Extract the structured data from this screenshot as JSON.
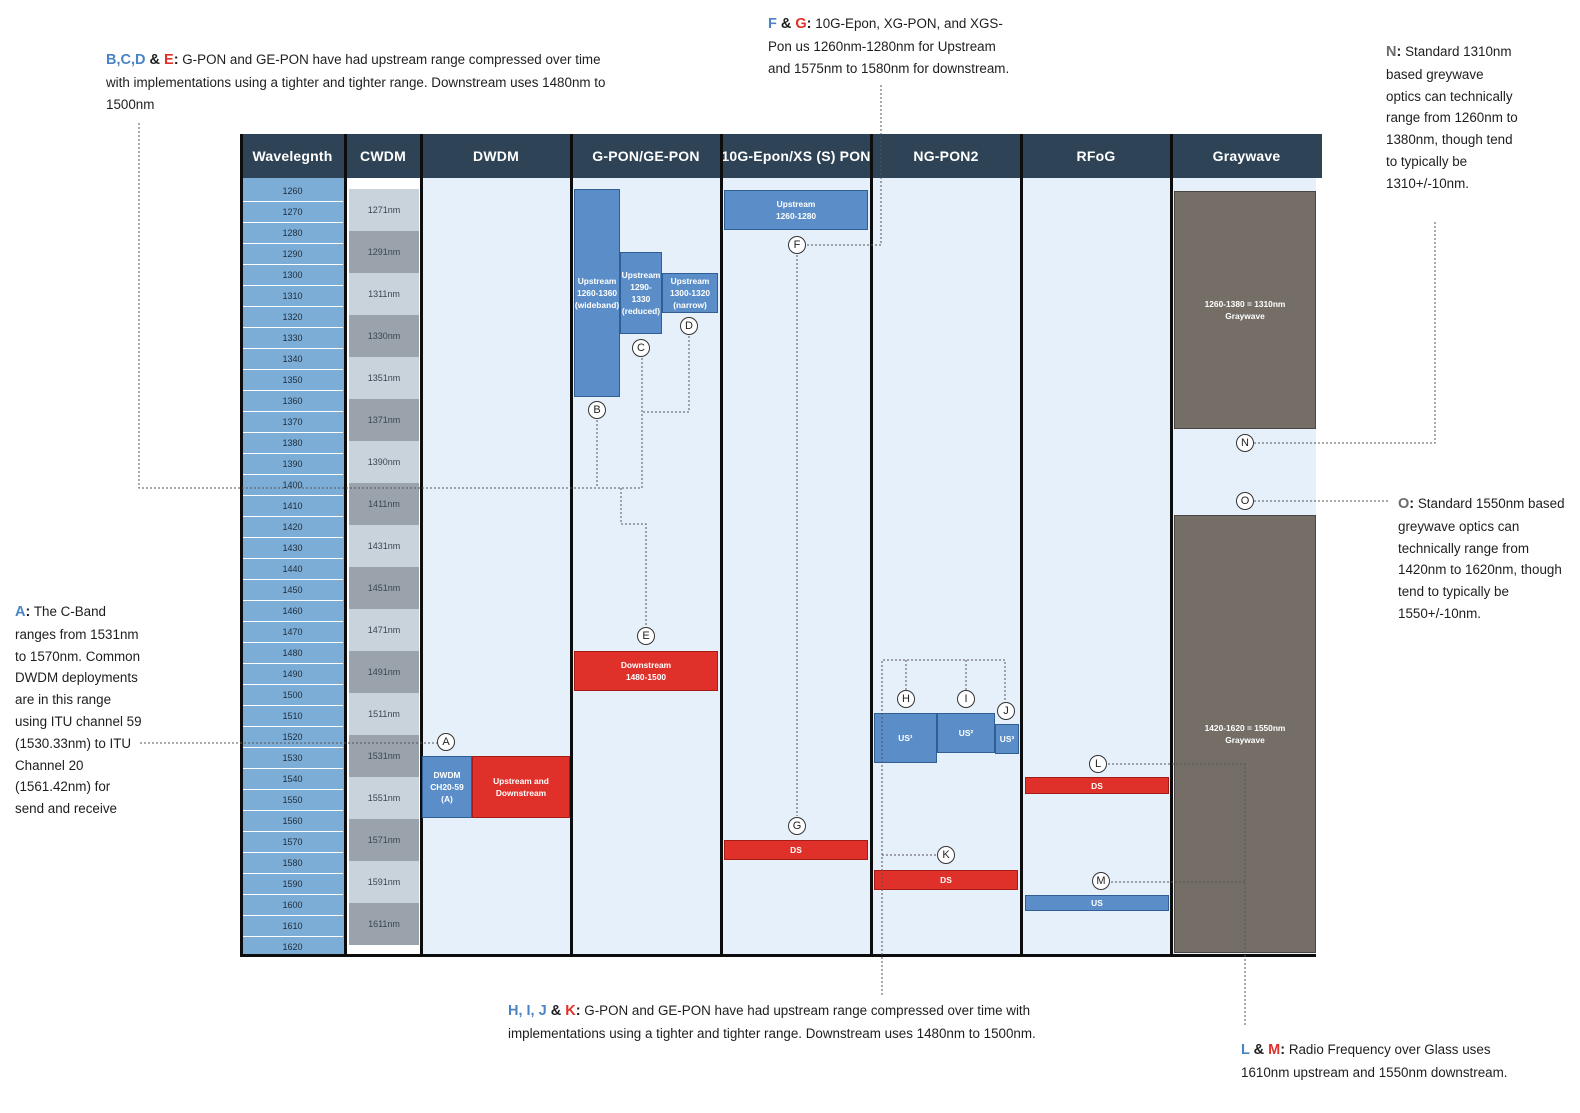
{
  "notes": {
    "bcde": {
      "prefix": [
        {
          "text": "B,C,D",
          "cls": "blue"
        },
        {
          "text": " & ",
          "cls": "amp"
        },
        {
          "text": "E",
          "cls": "red"
        },
        {
          "text": ":",
          "cls": "amp"
        }
      ],
      "text": "G-PON and GE-PON have had upstream range compressed over time with implementations using a tighter and tighter range. Downstream uses 1480nm to 1500nm"
    },
    "fg": {
      "prefix": [
        {
          "text": "F",
          "cls": "blue"
        },
        {
          "text": " & ",
          "cls": "amp"
        },
        {
          "text": "G",
          "cls": "red"
        },
        {
          "text": ":",
          "cls": "amp"
        }
      ],
      "text": "10G-Epon, XG-PON, and XGS-Pon us 1260nm-1280nm for Upstream and 1575nm to 1580nm for downstream."
    },
    "n": {
      "prefix": [
        {
          "text": "N",
          "cls": "grey"
        },
        {
          "text": ":",
          "cls": "amp"
        }
      ],
      "text": "Standard 1310nm based greywave optics can technically range from 1260nm to 1380nm, though tend to typically be 1310+/-10nm."
    },
    "o": {
      "prefix": [
        {
          "text": "O",
          "cls": "grey"
        },
        {
          "text": ":",
          "cls": "amp"
        }
      ],
      "text": "Standard 1550nm based greywave optics can technically range from 1420nm to 1620nm, though tend to typically be 1550+/-10nm."
    },
    "a": {
      "prefix": [
        {
          "text": "A",
          "cls": "blue"
        },
        {
          "text": ":",
          "cls": "amp"
        }
      ],
      "text": "The C-Band ranges from 1531nm to 1570nm. Common DWDM deployments are in this range using ITU channel 59 (1530.33nm) to ITU Channel 20 (1561.42nm) for send and receive"
    },
    "hijk": {
      "prefix": [
        {
          "text": "H, I, J",
          "cls": "blue"
        },
        {
          "text": " & ",
          "cls": "amp"
        },
        {
          "text": "K",
          "cls": "red"
        },
        {
          "text": ":",
          "cls": "amp"
        }
      ],
      "text": "G-PON and GE-PON have had upstream range compressed over time with implementations using a tighter and tighter range. Downstream uses 1480nm to 1500nm."
    },
    "lm": {
      "prefix": [
        {
          "text": "L",
          "cls": "blue"
        },
        {
          "text": " & ",
          "cls": "amp"
        },
        {
          "text": "M",
          "cls": "red"
        },
        {
          "text": ":",
          "cls": "amp"
        }
      ],
      "text": "Radio Frequency over Glass uses 1610nm upstream and 1550nm downstream."
    }
  },
  "columns": [
    "Wavelegnth",
    "CWDM",
    "DWDM",
    "G-PON/GE-PON",
    "10G-Epon/XS (S) PON",
    "NG-PON2",
    "RFoG",
    "Graywave"
  ],
  "wavelengths": [
    1260,
    1270,
    1280,
    1290,
    1300,
    1310,
    1320,
    1330,
    1340,
    1350,
    1360,
    1370,
    1380,
    1390,
    1400,
    1410,
    1420,
    1430,
    1440,
    1450,
    1460,
    1470,
    1480,
    1490,
    1500,
    1510,
    1520,
    1530,
    1540,
    1550,
    1560,
    1570,
    1580,
    1590,
    1600,
    1610,
    1620
  ],
  "cwdm": [
    "1271nm",
    "1291nm",
    "1311nm",
    "1330nm",
    "1351nm",
    "1371nm",
    "1390nm",
    "1411nm",
    "1431nm",
    "1451nm",
    "1471nm",
    "1491nm",
    "1511nm",
    "1531nm",
    "1551nm",
    "1571nm",
    "1591nm",
    "1611nm"
  ],
  "bars": {
    "dwdm_ch": "DWDM\nCH20-59\n(A)",
    "dwdm_usds": "Upstream and\nDownstream",
    "gpon_wide": "Upstream\n1260-1360\n(wideband)",
    "gpon_reduced": "Upstream\n1290-1330\n(reduced)",
    "gpon_narrow": "Upstream\n1300-1320\n(narrow)",
    "gpon_ds": "Downstream\n1480-1500",
    "xgs_us": "Upstream\n1260-1280",
    "xgs_ds": "DS",
    "ng_us1": "US¹",
    "ng_us2": "US²",
    "ng_us3": "US³",
    "ng_ds": "DS",
    "rfog_ds": "DS",
    "rfog_us": "US",
    "gray_1310": "1260-1380 = 1310nm\nGraywave",
    "gray_1550": "1420-1620 = 1550nm\nGraywave"
  },
  "tags": [
    "A",
    "B",
    "C",
    "D",
    "E",
    "F",
    "G",
    "H",
    "I",
    "J",
    "K",
    "L",
    "M",
    "N",
    "O"
  ],
  "colors": {
    "header": "#2e4356",
    "body": "#e6f0fa",
    "blue": "#5b8ec8",
    "red": "#e0302a",
    "gray": "#756e66"
  }
}
